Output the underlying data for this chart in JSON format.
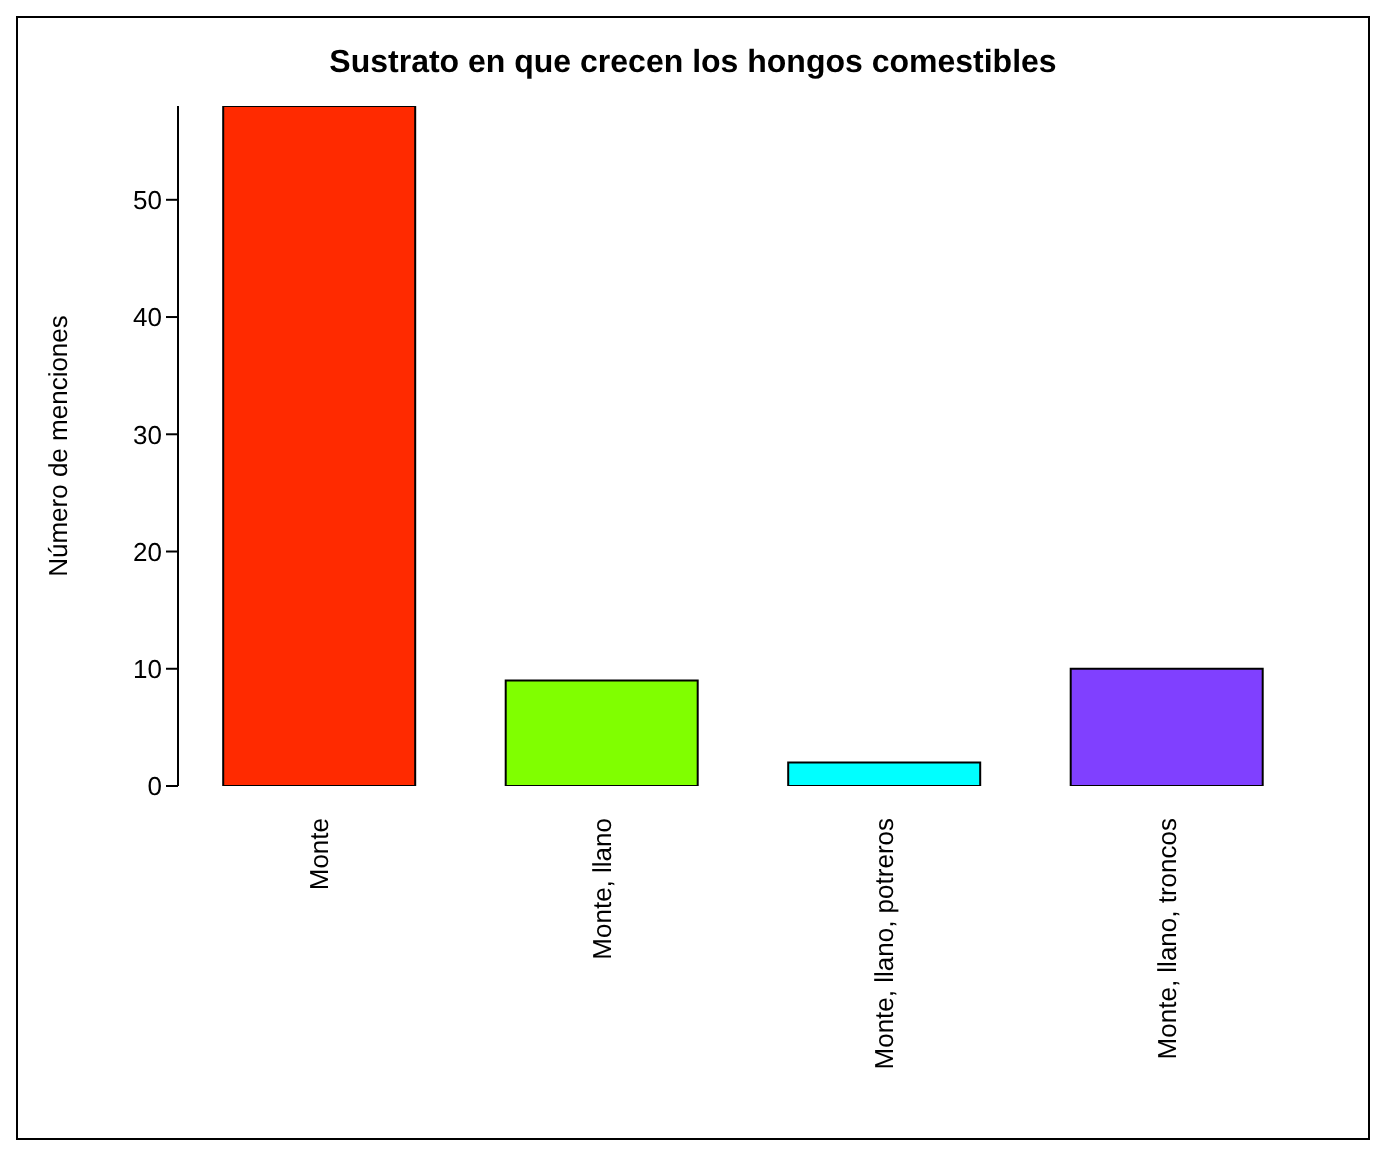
{
  "chart_data": {
    "type": "bar",
    "title": "Sustrato en que crecen los hongos comestibles",
    "ylabel": "Número de menciones",
    "categories": [
      "Monte",
      "Monte, llano",
      "Monte, llano, potreros",
      "Monte, llano, troncos"
    ],
    "values": [
      58,
      9,
      2,
      10
    ],
    "colors": [
      "#ff2a00",
      "#80ff00",
      "#00ffff",
      "#8040ff"
    ],
    "ylim": [
      0,
      58
    ],
    "yticks": [
      0,
      10,
      20,
      30,
      40,
      50
    ],
    "grid": false,
    "legend": false
  }
}
